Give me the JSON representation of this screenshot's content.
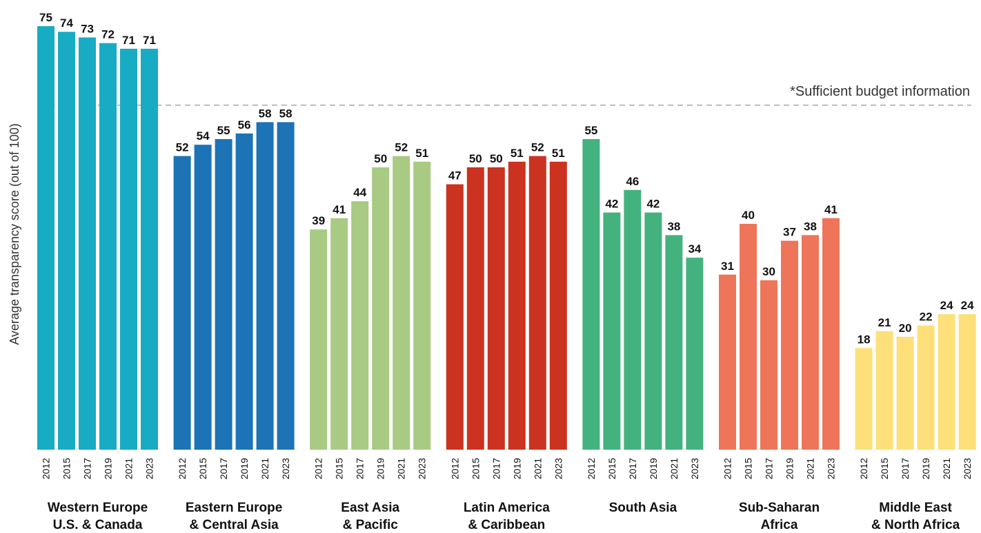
{
  "chart_data": {
    "type": "bar",
    "ylabel": "Average transparency score (out of 100)",
    "xlabel": "",
    "ylim": [
      0,
      78
    ],
    "years": [
      "2012",
      "2015",
      "2017",
      "2019",
      "2021",
      "2023"
    ],
    "threshold": {
      "value": 61,
      "label": "*Sufficient budget information"
    },
    "groups": [
      {
        "name": "Western Europe\nU.S. & Canada",
        "color": "#18abc4",
        "values": [
          75,
          74,
          73,
          72,
          71,
          71
        ]
      },
      {
        "name": "Eastern Europe\n& Central Asia",
        "color": "#1c73b5",
        "values": [
          52,
          54,
          55,
          56,
          58,
          58
        ]
      },
      {
        "name": "East Asia\n& Pacific",
        "color": "#a8ca82",
        "values": [
          39,
          41,
          44,
          50,
          52,
          51
        ]
      },
      {
        "name": "Latin America\n& Caribbean",
        "color": "#cc3220",
        "values": [
          47,
          50,
          50,
          51,
          52,
          51
        ]
      },
      {
        "name": "South Asia",
        "color": "#44b27e",
        "values": [
          55,
          42,
          46,
          42,
          38,
          34
        ]
      },
      {
        "name": "Sub-Saharan\nAfrica",
        "color": "#ee7559",
        "values": [
          31,
          40,
          30,
          37,
          38,
          41
        ]
      },
      {
        "name": "Middle East\n& North Africa",
        "color": "#fde07a",
        "values": [
          18,
          21,
          20,
          22,
          24,
          24
        ]
      }
    ]
  }
}
